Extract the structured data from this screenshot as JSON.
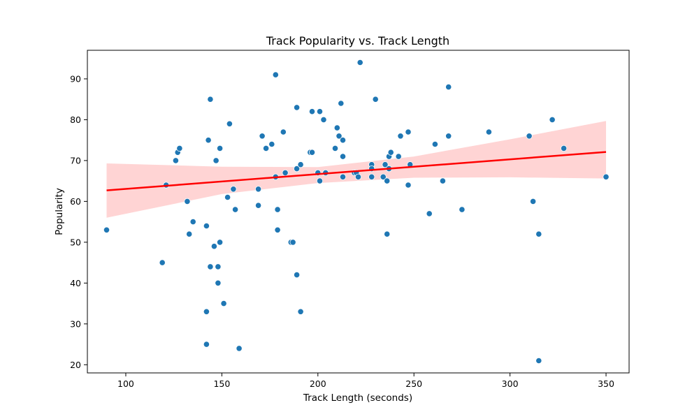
{
  "chart_data": {
    "type": "scatter",
    "title": "Track Popularity vs. Track Length",
    "xlabel": "Track Length (seconds)",
    "ylabel": "Popularity",
    "xlim": [
      80,
      362
    ],
    "ylim": [
      18,
      97
    ],
    "xticks": [
      100,
      150,
      200,
      250,
      300,
      350
    ],
    "yticks": [
      20,
      30,
      40,
      50,
      60,
      70,
      80,
      90
    ],
    "grid": false,
    "legend": "none",
    "colors": {
      "points": "#1f77b4",
      "regression": "#ff0000",
      "ci_band": "#ffcccc"
    },
    "points": [
      [
        90,
        53
      ],
      [
        119,
        45
      ],
      [
        121,
        64
      ],
      [
        126,
        70
      ],
      [
        127,
        72
      ],
      [
        128,
        73
      ],
      [
        132,
        60
      ],
      [
        133,
        52
      ],
      [
        135,
        55
      ],
      [
        142,
        54
      ],
      [
        142,
        33
      ],
      [
        142,
        25
      ],
      [
        143,
        75
      ],
      [
        144,
        85
      ],
      [
        144,
        44
      ],
      [
        146,
        49
      ],
      [
        147,
        70
      ],
      [
        148,
        40
      ],
      [
        148,
        44
      ],
      [
        149,
        73
      ],
      [
        149,
        50
      ],
      [
        151,
        35
      ],
      [
        153,
        61
      ],
      [
        154,
        79
      ],
      [
        156,
        63
      ],
      [
        157,
        58
      ],
      [
        159,
        24
      ],
      [
        169,
        63
      ],
      [
        169,
        59
      ],
      [
        171,
        76
      ],
      [
        173,
        73
      ],
      [
        176,
        74
      ],
      [
        178,
        91
      ],
      [
        178,
        66
      ],
      [
        179,
        58
      ],
      [
        179,
        53
      ],
      [
        182,
        77
      ],
      [
        183,
        67
      ],
      [
        186,
        50
      ],
      [
        187,
        50
      ],
      [
        189,
        83
      ],
      [
        189,
        68
      ],
      [
        189,
        42
      ],
      [
        191,
        69
      ],
      [
        191,
        33
      ],
      [
        196,
        72
      ],
      [
        197,
        72
      ],
      [
        197,
        82
      ],
      [
        200,
        67
      ],
      [
        201,
        82
      ],
      [
        201,
        65
      ],
      [
        203,
        80
      ],
      [
        204,
        67
      ],
      [
        209,
        73
      ],
      [
        210,
        78
      ],
      [
        211,
        76
      ],
      [
        212,
        84
      ],
      [
        213,
        75
      ],
      [
        213,
        71
      ],
      [
        213,
        66
      ],
      [
        219,
        67
      ],
      [
        220,
        67
      ],
      [
        221,
        66
      ],
      [
        222,
        94
      ],
      [
        228,
        69
      ],
      [
        228,
        68
      ],
      [
        228,
        66
      ],
      [
        230,
        85
      ],
      [
        234,
        66
      ],
      [
        235,
        69
      ],
      [
        236,
        65
      ],
      [
        236,
        52
      ],
      [
        237,
        71
      ],
      [
        237,
        68
      ],
      [
        238,
        72
      ],
      [
        242,
        71
      ],
      [
        243,
        76
      ],
      [
        247,
        77
      ],
      [
        247,
        64
      ],
      [
        248,
        69
      ],
      [
        258,
        57
      ],
      [
        261,
        74
      ],
      [
        265,
        65
      ],
      [
        268,
        88
      ],
      [
        268,
        76
      ],
      [
        275,
        58
      ],
      [
        289,
        77
      ],
      [
        310,
        76
      ],
      [
        312,
        60
      ],
      [
        315,
        52
      ],
      [
        315,
        21
      ],
      [
        322,
        80
      ],
      [
        328,
        73
      ],
      [
        350,
        66
      ]
    ],
    "regression": {
      "x": [
        90,
        350
      ],
      "y": [
        62.7,
        72.1
      ],
      "ci": [
        {
          "x": 90,
          "lower": 56.0,
          "upper": 69.3
        },
        {
          "x": 150,
          "lower": 61.8,
          "upper": 68.5
        },
        {
          "x": 200,
          "lower": 64.5,
          "upper": 68.4
        },
        {
          "x": 250,
          "lower": 65.8,
          "upper": 71.0
        },
        {
          "x": 300,
          "lower": 65.9,
          "upper": 75.2
        },
        {
          "x": 350,
          "lower": 65.6,
          "upper": 79.7
        }
      ]
    }
  }
}
